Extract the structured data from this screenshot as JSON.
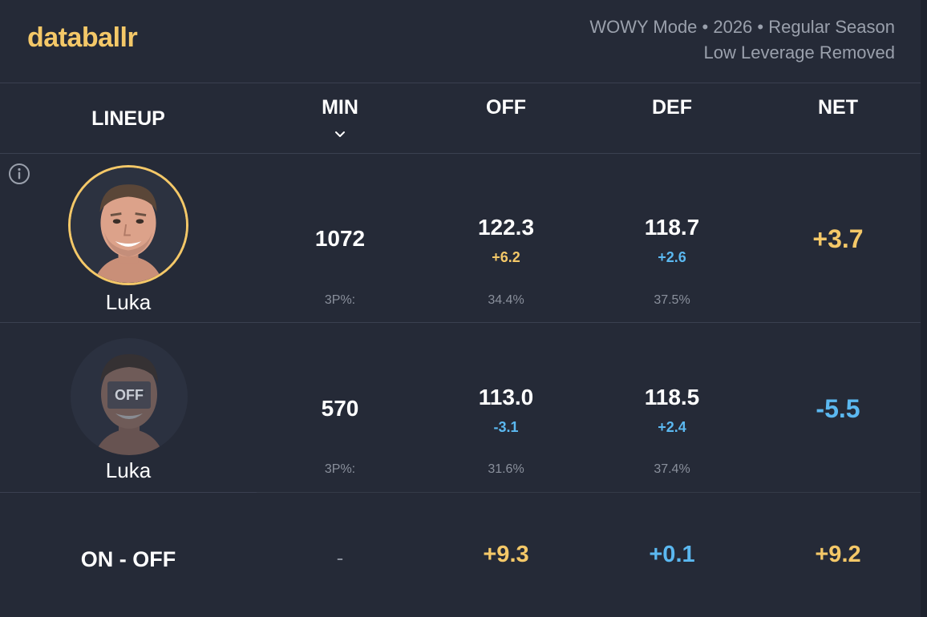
{
  "brand": {
    "logo": "databallr"
  },
  "filters": {
    "line1": "WOWY Mode • 2026 • Regular Season",
    "line2": "Low Leverage Removed"
  },
  "columns": {
    "lineup": "LINEUP",
    "min": "MIN",
    "off": "OFF",
    "def": "DEF",
    "net": "NET"
  },
  "rows": [
    {
      "player": "Luka",
      "state": "on",
      "min": "1072",
      "off": "122.3",
      "off_delta": "+6.2",
      "def": "118.7",
      "def_delta": "+2.6",
      "net": "+3.7",
      "threep_label": "3P%:",
      "off_3p": "34.4%",
      "def_3p": "37.5%"
    },
    {
      "player": "Luka",
      "state": "off",
      "off_tag": "OFF",
      "min": "570",
      "off": "113.0",
      "off_delta": "-3.1",
      "def": "118.5",
      "def_delta": "+2.4",
      "net": "-5.5",
      "threep_label": "3P%:",
      "off_3p": "31.6%",
      "def_3p": "37.4%"
    }
  ],
  "summary": {
    "label": "ON - OFF",
    "min": "-",
    "off": "+9.3",
    "def": "+0.1",
    "net": "+9.2"
  },
  "colors": {
    "gold": "#f4c868",
    "blue": "#5bb8f0",
    "background": "#252a37",
    "muted": "#8a909c"
  },
  "icons": {
    "info": "info-icon",
    "sort": "chevron-down-icon"
  }
}
